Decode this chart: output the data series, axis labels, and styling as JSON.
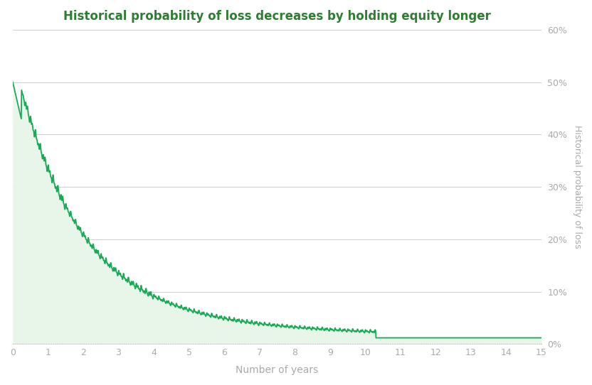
{
  "title": "Historical probability of loss decreases by holding equity longer",
  "xlabel": "Number of years",
  "ylabel": "Historical probability of loss",
  "title_color": "#2e7d32",
  "line_color": "#1aaa55",
  "fill_color": "#e8f5e9",
  "background_color": "#ffffff",
  "grid_color": "#d0d0d0",
  "axis_label_color": "#aaaaaa",
  "tick_label_color": "#aaaaaa",
  "xlim": [
    0,
    15
  ],
  "ylim": [
    0,
    0.6
  ],
  "yticks": [
    0.0,
    0.1,
    0.2,
    0.3,
    0.4,
    0.5,
    0.6
  ],
  "xticks": [
    0,
    1,
    2,
    3,
    4,
    5,
    6,
    7,
    8,
    9,
    10,
    11,
    12,
    13,
    14,
    15
  ]
}
